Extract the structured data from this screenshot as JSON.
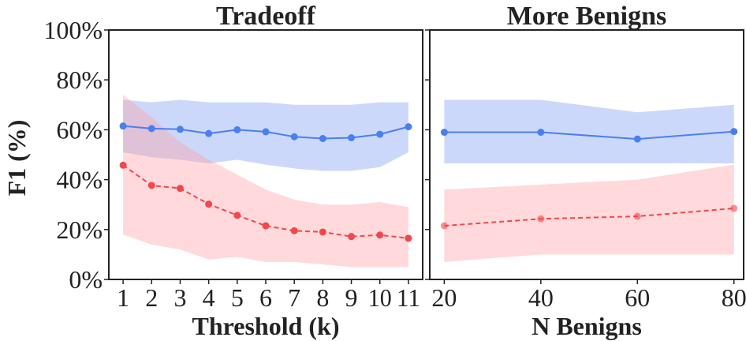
{
  "ylabel": "F1 (%)",
  "colors": {
    "blue": "#4a7ff0",
    "red": "#f0484e",
    "blue_band": "#8fa8f5",
    "red_band": "#ff9aa0"
  },
  "chart_data": [
    {
      "type": "line",
      "title": "Tradeoff",
      "xlabel": "Threshold (k)",
      "ylabel": "F1 (%)",
      "x": [
        1,
        2,
        3,
        4,
        5,
        6,
        7,
        8,
        9,
        10,
        11
      ],
      "x_tick_labels": [
        "1",
        "2",
        "3",
        "4",
        "5",
        "6",
        "7",
        "8",
        "9",
        "10",
        "11"
      ],
      "xlim": [
        0.5,
        11.5
      ],
      "ylim": [
        0,
        100
      ],
      "y_ticks": [
        0,
        20,
        40,
        60,
        80,
        100
      ],
      "y_tick_labels": [
        "0%",
        "20%",
        "40%",
        "60%",
        "80%",
        "100%"
      ],
      "series": [
        {
          "color": "#4a7ff0",
          "style": "solid",
          "values": [
            61.5,
            60.5,
            60.2,
            58.5,
            60.0,
            59.2,
            57.2,
            56.5,
            56.8,
            58.2,
            61.2
          ],
          "upper": [
            72,
            71,
            72,
            71,
            71,
            71,
            70,
            70,
            70,
            71,
            71
          ],
          "lower": [
            51,
            49,
            48,
            46.5,
            48,
            46,
            44.5,
            43.5,
            43.5,
            45,
            51
          ]
        },
        {
          "color": "#f0484e",
          "style": "dashed",
          "values": [
            45.8,
            37.7,
            36.5,
            30.2,
            25.7,
            21.5,
            19.5,
            19.0,
            17.2,
            17.8,
            16.5
          ],
          "upper": [
            74,
            65,
            55,
            48,
            42,
            36,
            32,
            30,
            30,
            31,
            29
          ],
          "lower": [
            18,
            14,
            12,
            8,
            9,
            7,
            7,
            6,
            5,
            5,
            5
          ]
        }
      ]
    },
    {
      "type": "line",
      "title": "More Benigns",
      "xlabel": "N Benigns",
      "x": [
        20,
        40,
        60,
        80
      ],
      "x_tick_labels": [
        "20",
        "40",
        "60",
        "80"
      ],
      "xlim": [
        17,
        82
      ],
      "ylim": [
        0,
        100
      ],
      "series": [
        {
          "color": "#4a7ff0",
          "style": "solid",
          "values": [
            59.0,
            59.0,
            56.3,
            59.3
          ],
          "upper": [
            72,
            72,
            67,
            70
          ],
          "lower": [
            46.5,
            46.5,
            46.5,
            46.5
          ]
        },
        {
          "color": "#f0484e",
          "style": "dashed",
          "values": [
            21.5,
            24.3,
            25.3,
            28.5
          ],
          "upper": [
            36,
            38,
            40,
            46
          ],
          "lower": [
            7,
            10,
            10,
            10
          ]
        }
      ]
    }
  ]
}
